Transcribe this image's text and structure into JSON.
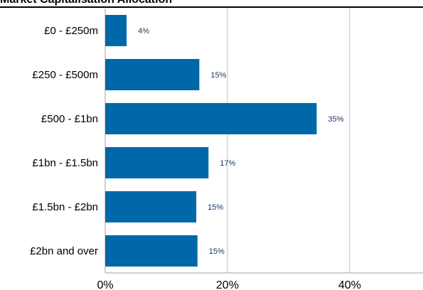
{
  "chart_data": {
    "type": "bar",
    "orientation": "horizontal",
    "title": "Market Capitalisation Allocation",
    "categories": [
      "£0 - £250m",
      "£250 - £500m",
      "£500 - £1bn",
      "£1bn - £1.5bn",
      "£1.5bn - £2bn",
      "£2bn and over"
    ],
    "values": [
      3.5,
      15.4,
      34.6,
      16.9,
      14.9,
      15.1
    ],
    "value_labels": [
      "4%",
      "15%",
      "35%",
      "17%",
      "15%",
      "15%"
    ],
    "xlim": [
      0,
      52
    ],
    "xticks": [
      0,
      20,
      40
    ],
    "xtick_labels": [
      "0%",
      "20%",
      "40%"
    ],
    "xlabel": "",
    "ylabel": "",
    "grid": "vertical",
    "legend": "none",
    "bar_color": "#0068A8",
    "grid_color": "#c0c0c0",
    "value_label_color": "#1f3864"
  }
}
